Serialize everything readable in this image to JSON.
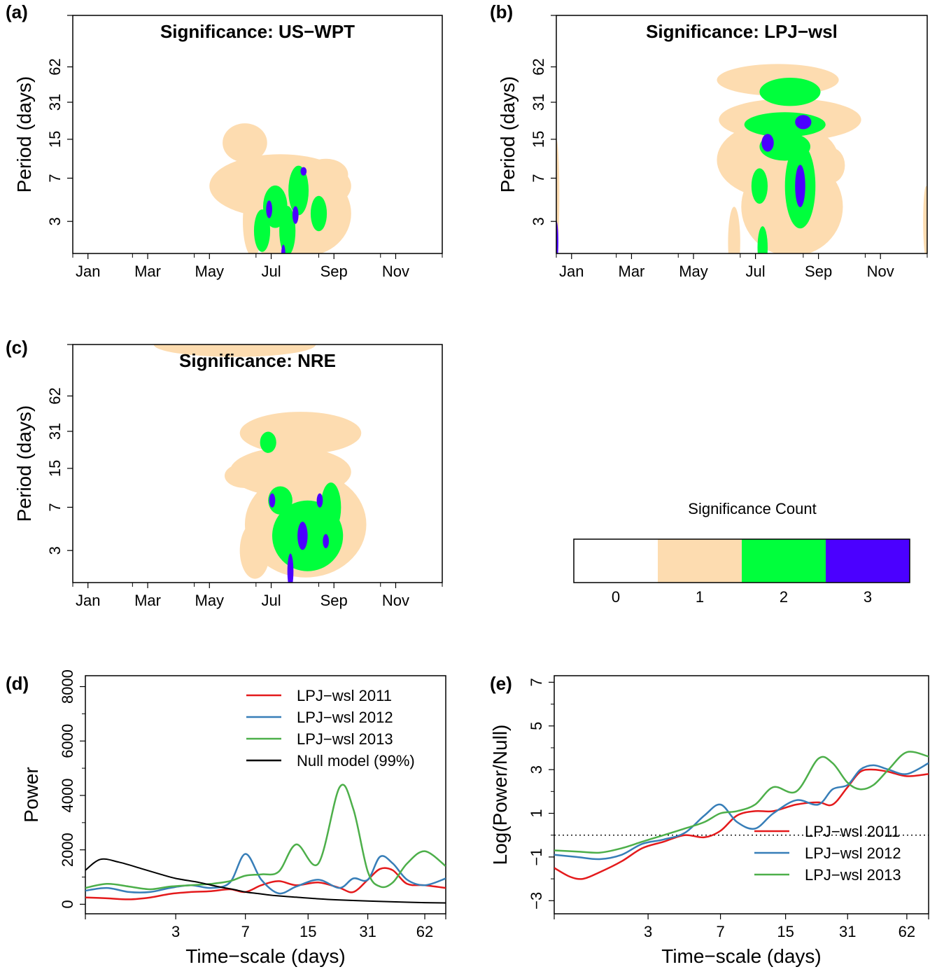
{
  "panel_labels": {
    "a": "(a)",
    "b": "(b)",
    "c": "(c)",
    "d": "(d)",
    "e": "(e)"
  },
  "colors": {
    "count0": "#ffffff",
    "count1": "#fddcb0",
    "count2": "#00ff3c",
    "count3": "#4b00ff",
    "red": "#e41a1c",
    "blue": "#377eb8",
    "green": "#4daf4a",
    "black": "#000000"
  },
  "colorbar": {
    "title": "Significance Count",
    "labels": [
      "0",
      "1",
      "2",
      "3"
    ]
  },
  "chart_data": [
    {
      "type": "heatmap",
      "title": "Significance: US−WPT",
      "ylabel": "Period (days)",
      "xticks": [
        "Jan",
        "Mar",
        "May",
        "Jul",
        "Sep",
        "Nov"
      ],
      "yticks": [
        "3",
        "7",
        "15",
        "31",
        "62"
      ],
      "blobs": [
        {
          "count": 1,
          "day": 170,
          "period": 14,
          "w": 22,
          "h": 0.55
        },
        {
          "count": 1,
          "day": 205,
          "period": 6,
          "w": 70,
          "h": 0.9
        },
        {
          "count": 1,
          "day": 250,
          "period": 7.5,
          "w": 22,
          "h": 0.45
        },
        {
          "count": 1,
          "day": 178,
          "period": 3,
          "w": 10,
          "h": 1.0
        },
        {
          "count": 1,
          "day": 230,
          "period": 3.5,
          "w": 45,
          "h": 1.2
        },
        {
          "count": 1,
          "day": 210,
          "period": 2.5,
          "w": 30,
          "h": 1.0
        },
        {
          "count": 2,
          "day": 200,
          "period": 4,
          "w": 12,
          "h": 0.6
        },
        {
          "count": 2,
          "day": 223,
          "period": 5.5,
          "w": 10,
          "h": 0.7
        },
        {
          "count": 2,
          "day": 187,
          "period": 2.5,
          "w": 8,
          "h": 0.6
        },
        {
          "count": 2,
          "day": 212,
          "period": 2.5,
          "w": 8,
          "h": 0.7
        },
        {
          "count": 2,
          "day": 243,
          "period": 3.5,
          "w": 8,
          "h": 0.5
        },
        {
          "count": 3,
          "day": 194,
          "period": 3.8,
          "w": 3,
          "h": 0.25
        },
        {
          "count": 3,
          "day": 220,
          "period": 3.4,
          "w": 3,
          "h": 0.25
        },
        {
          "count": 3,
          "day": 228,
          "period": 8,
          "w": 3,
          "h": 0.12
        },
        {
          "count": 3,
          "day": 208,
          "period": 1.6,
          "w": 2,
          "h": 0.25
        }
      ]
    },
    {
      "type": "heatmap",
      "title": "Significance: LPJ−wsl",
      "ylabel": "Period (days)",
      "xticks": [
        "Jan",
        "Mar",
        "May",
        "Jul",
        "Sep",
        "Nov"
      ],
      "yticks": [
        "3",
        "7",
        "15",
        "31",
        "62"
      ],
      "blobs": [
        {
          "count": 1,
          "day": 218,
          "period": 48,
          "w": 60,
          "h": 0.45
        },
        {
          "count": 1,
          "day": 230,
          "period": 22,
          "w": 70,
          "h": 0.6
        },
        {
          "count": 1,
          "day": 218,
          "period": 10,
          "w": 60,
          "h": 1.1
        },
        {
          "count": 1,
          "day": 232,
          "period": 4,
          "w": 50,
          "h": 1.4
        },
        {
          "count": 1,
          "day": 270,
          "period": 9,
          "w": 14,
          "h": 0.5
        },
        {
          "count": 1,
          "day": 175,
          "period": 2,
          "w": 6,
          "h": 1.0
        },
        {
          "count": 1,
          "day": 0,
          "period": 5,
          "w": 3,
          "h": 1.6
        },
        {
          "count": 1,
          "day": 364,
          "period": 3,
          "w": 3,
          "h": 1.0
        },
        {
          "count": 2,
          "day": 230,
          "period": 38,
          "w": 30,
          "h": 0.4
        },
        {
          "count": 2,
          "day": 225,
          "period": 20,
          "w": 40,
          "h": 0.35
        },
        {
          "count": 2,
          "day": 225,
          "period": 13,
          "w": 25,
          "h": 0.4
        },
        {
          "count": 2,
          "day": 240,
          "period": 6,
          "w": 15,
          "h": 1.2
        },
        {
          "count": 2,
          "day": 200,
          "period": 6,
          "w": 8,
          "h": 0.5
        },
        {
          "count": 2,
          "day": 203,
          "period": 1.8,
          "w": 5,
          "h": 0.6
        },
        {
          "count": 3,
          "day": 243,
          "period": 21,
          "w": 8,
          "h": 0.2
        },
        {
          "count": 3,
          "day": 208,
          "period": 14,
          "w": 6,
          "h": 0.25
        },
        {
          "count": 3,
          "day": 240,
          "period": 6,
          "w": 5,
          "h": 0.6
        },
        {
          "count": 3,
          "day": 0,
          "period": 2,
          "w": 2,
          "h": 0.6
        }
      ]
    },
    {
      "type": "heatmap",
      "title": "Significance: NRE",
      "ylabel": "Period (days)",
      "xticks": [
        "Jan",
        "Mar",
        "May",
        "Jul",
        "Sep",
        "Nov"
      ],
      "yticks": [
        "3",
        "7",
        "15",
        "31",
        "62"
      ],
      "blobs": [
        {
          "count": 1,
          "day": 160,
          "period": 170,
          "w": 80,
          "h": 0.35
        },
        {
          "count": 1,
          "day": 225,
          "period": 30,
          "w": 60,
          "h": 0.6
        },
        {
          "count": 1,
          "day": 215,
          "period": 14,
          "w": 60,
          "h": 0.7
        },
        {
          "count": 1,
          "day": 170,
          "period": 13,
          "w": 20,
          "h": 0.35
        },
        {
          "count": 1,
          "day": 230,
          "period": 5,
          "w": 60,
          "h": 1.5
        },
        {
          "count": 1,
          "day": 180,
          "period": 3,
          "w": 15,
          "h": 0.8
        },
        {
          "count": 2,
          "day": 193,
          "period": 25,
          "w": 8,
          "h": 0.3
        },
        {
          "count": 2,
          "day": 205,
          "period": 8,
          "w": 12,
          "h": 0.4
        },
        {
          "count": 2,
          "day": 232,
          "period": 4,
          "w": 35,
          "h": 1.0
        },
        {
          "count": 2,
          "day": 255,
          "period": 7,
          "w": 10,
          "h": 0.7
        },
        {
          "count": 3,
          "day": 197,
          "period": 8,
          "w": 3,
          "h": 0.2
        },
        {
          "count": 3,
          "day": 227,
          "period": 4,
          "w": 5,
          "h": 0.4
        },
        {
          "count": 3,
          "day": 250,
          "period": 3.6,
          "w": 3,
          "h": 0.2
        },
        {
          "count": 3,
          "day": 244,
          "period": 8,
          "w": 3,
          "h": 0.2
        },
        {
          "count": 3,
          "day": 215,
          "period": 2,
          "w": 3,
          "h": 0.5
        }
      ]
    },
    {
      "type": "line",
      "xlabel": "Time−scale (days)",
      "ylabel": "Power",
      "xticks": [
        "3",
        "7",
        "15",
        "31",
        "62"
      ],
      "yticks": [
        "0",
        "2000",
        "4000",
        "6000",
        "8000"
      ],
      "ylim": [
        0,
        8000
      ],
      "legend": "top-right",
      "series": [
        {
          "name": "LPJ−wsl 2011",
          "color": "red",
          "x": [
            1,
            1.3,
            1.7,
            2.2,
            2.8,
            3.6,
            4.6,
            5.8,
            7,
            8.5,
            10.5,
            13,
            17,
            22,
            26,
            31,
            36,
            42,
            50,
            62,
            80
          ],
          "values": [
            250,
            220,
            180,
            250,
            380,
            450,
            480,
            550,
            450,
            700,
            850,
            700,
            800,
            600,
            450,
            900,
            1300,
            1250,
            750,
            700,
            600
          ]
        },
        {
          "name": "LPJ−wsl 2012",
          "color": "blue",
          "x": [
            1,
            1.3,
            1.7,
            2.2,
            2.8,
            3.6,
            4.6,
            5.8,
            7,
            8.5,
            10.5,
            13,
            17,
            22,
            26,
            31,
            36,
            42,
            50,
            62,
            80
          ],
          "values": [
            500,
            600,
            450,
            450,
            600,
            700,
            600,
            800,
            1850,
            900,
            400,
            650,
            900,
            600,
            950,
            900,
            1750,
            1500,
            900,
            700,
            950
          ]
        },
        {
          "name": "LPJ−wsl 2013",
          "color": "green",
          "x": [
            1,
            1.3,
            1.7,
            2.2,
            2.8,
            3.6,
            4.6,
            5.8,
            7,
            8.5,
            10.5,
            13,
            17,
            22,
            26,
            31,
            36,
            42,
            50,
            62,
            80
          ],
          "values": [
            600,
            750,
            650,
            550,
            650,
            700,
            750,
            850,
            1050,
            1100,
            1200,
            2200,
            1500,
            4300,
            3500,
            1200,
            650,
            800,
            1500,
            1950,
            1400
          ]
        },
        {
          "name": "Null model (99%)",
          "color": "black",
          "x": [
            1,
            1.2,
            1.5,
            2,
            2.5,
            3,
            4,
            5,
            6,
            7,
            8,
            10,
            13,
            17,
            22,
            31,
            42,
            62,
            80
          ],
          "values": [
            1250,
            1650,
            1550,
            1300,
            1100,
            950,
            800,
            650,
            550,
            450,
            400,
            320,
            260,
            200,
            160,
            120,
            90,
            60,
            50
          ]
        }
      ]
    },
    {
      "type": "line",
      "xlabel": "Time−scale (days)",
      "ylabel": "Log(Power/Null)",
      "xticks": [
        "3",
        "7",
        "15",
        "31",
        "62"
      ],
      "yticks": [
        "−3",
        "−1",
        "1",
        "3",
        "5",
        "7"
      ],
      "ylim": [
        -3,
        7
      ],
      "reference_line": 0,
      "legend": "bottom-right",
      "series": [
        {
          "name": "LPJ−wsl 2011",
          "color": "red",
          "x": [
            1,
            1.2,
            1.4,
            1.7,
            2.2,
            2.8,
            3.6,
            4.6,
            5.8,
            7,
            8.5,
            10.5,
            13,
            17,
            22,
            26,
            31,
            36,
            42,
            50,
            62,
            80
          ],
          "values": [
            -1.5,
            -1.9,
            -2.0,
            -1.7,
            -1.2,
            -0.6,
            -0.3,
            0.0,
            -0.1,
            0.2,
            0.9,
            1.1,
            1.1,
            1.4,
            1.5,
            1.4,
            2.2,
            2.9,
            3.0,
            2.9,
            2.7,
            2.8
          ]
        },
        {
          "name": "LPJ−wsl 2012",
          "color": "blue",
          "x": [
            1,
            1.3,
            1.7,
            2.2,
            2.8,
            3.6,
            4.6,
            5.8,
            7,
            8.5,
            10.5,
            13,
            17,
            22,
            26,
            31,
            36,
            42,
            50,
            62,
            80
          ],
          "values": [
            -0.9,
            -1.0,
            -1.1,
            -0.9,
            -0.4,
            -0.2,
            0.1,
            0.9,
            1.4,
            0.6,
            0.3,
            1.0,
            1.6,
            1.4,
            2.1,
            2.3,
            3.0,
            3.2,
            3.0,
            2.8,
            3.3
          ]
        },
        {
          "name": "LPJ−wsl 2013",
          "color": "green",
          "x": [
            1,
            1.3,
            1.7,
            2.2,
            2.8,
            3.6,
            4.6,
            5.8,
            7,
            8.5,
            10.5,
            13,
            17,
            22,
            26,
            31,
            36,
            42,
            50,
            62,
            80
          ],
          "values": [
            -0.7,
            -0.75,
            -0.8,
            -0.6,
            -0.3,
            0.0,
            0.3,
            0.6,
            1.0,
            1.1,
            1.4,
            2.2,
            2.0,
            3.5,
            3.3,
            2.4,
            2.1,
            2.3,
            3.0,
            3.8,
            3.6
          ]
        }
      ]
    }
  ]
}
